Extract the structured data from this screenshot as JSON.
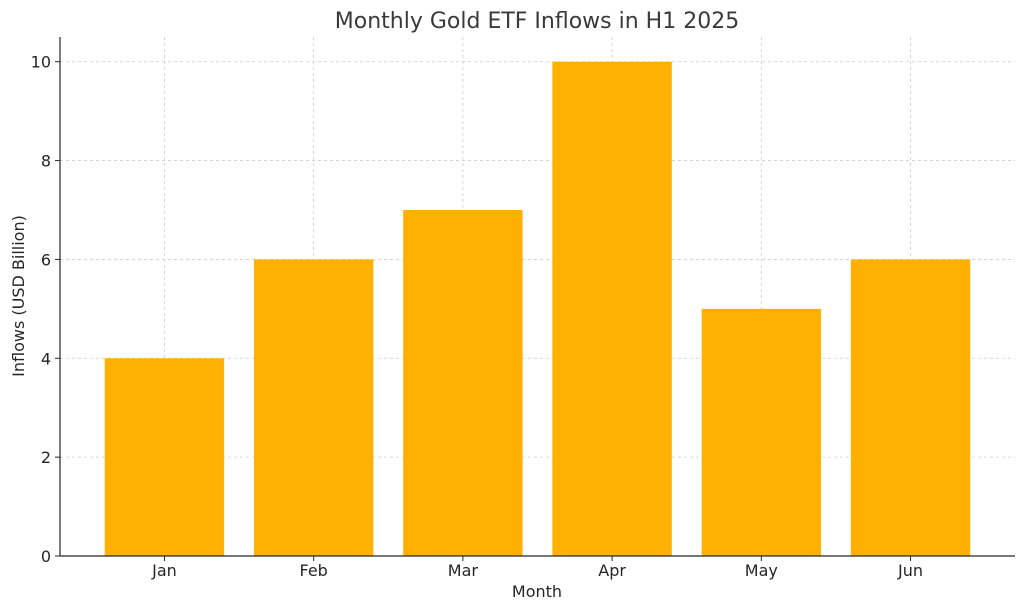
{
  "chart_data": {
    "type": "bar",
    "title": "Monthly Gold ETF Inflows in H1 2025",
    "xlabel": "Month",
    "ylabel": "Inflows (USD Billion)",
    "categories": [
      "Jan",
      "Feb",
      "Mar",
      "Apr",
      "May",
      "Jun"
    ],
    "values": [
      4,
      6,
      7,
      10,
      5,
      6
    ],
    "ylim": [
      0,
      10.5
    ],
    "yticks": [
      0,
      2,
      4,
      6,
      8,
      10
    ],
    "grid": true,
    "grid_style": "dashed",
    "bar_color": "#FFB000",
    "grid_color": "#CCCCCC",
    "axis_color": "#262626",
    "text_color": "#262626"
  }
}
